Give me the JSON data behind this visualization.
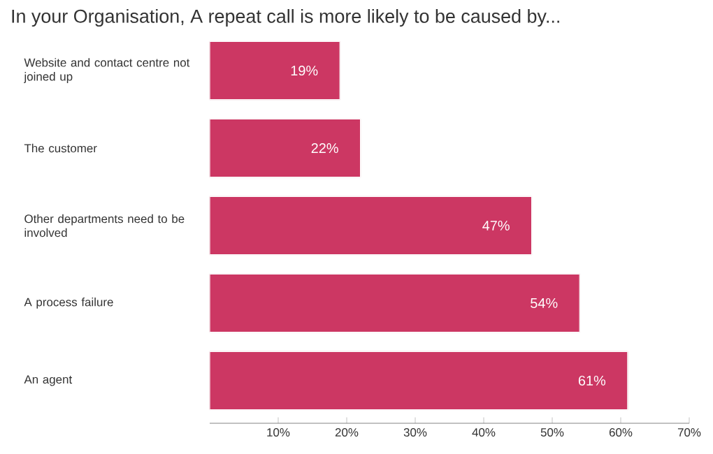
{
  "chart_data": {
    "type": "bar",
    "orientation": "horizontal",
    "title": "In your Organisation, A repeat call is more likely to be caused by...",
    "categories": [
      "Website and contact centre not joined up",
      "The customer",
      "Other departments need to be involved",
      "A process failure",
      "An agent"
    ],
    "values": [
      19,
      22,
      47,
      54,
      61
    ],
    "value_labels": [
      "19%",
      "22%",
      "47%",
      "54%",
      "61%"
    ],
    "color": "#cc3763",
    "xlim": [
      0,
      70
    ],
    "xticks": [
      {
        "value": 10,
        "label": "10%"
      },
      {
        "value": 20,
        "label": "20%"
      },
      {
        "value": 30,
        "label": "30%"
      },
      {
        "value": 40,
        "label": "40%"
      },
      {
        "value": 50,
        "label": "50%"
      },
      {
        "value": 60,
        "label": "60%"
      },
      {
        "value": 70,
        "label": "70%"
      }
    ]
  }
}
